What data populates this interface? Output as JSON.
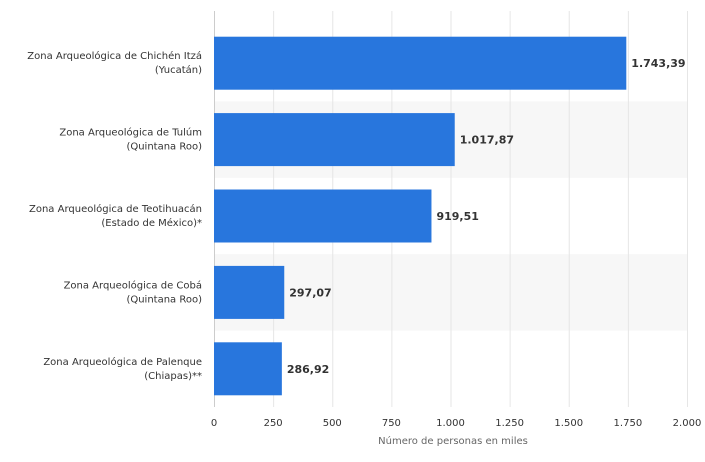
{
  "chart_data": {
    "type": "bar",
    "orientation": "horizontal",
    "categories": [
      [
        "Zona Arqueológica de Chichén Itzá",
        "(Yucatán)"
      ],
      [
        "Zona Arqueológica de Tulúm",
        "(Quintana Roo)"
      ],
      [
        "Zona Arqueológica de Teotihuacán",
        "(Estado de México)*"
      ],
      [
        "Zona Arqueológica de Cobá",
        "(Quintana Roo)"
      ],
      [
        "Zona Arqueológica de Palenque",
        "(Chiapas)**"
      ]
    ],
    "values": [
      1743.39,
      1017.87,
      919.51,
      297.07,
      286.92
    ],
    "value_labels": [
      "1.743,39",
      "1.017,87",
      "919,51",
      "297,07",
      "286,92"
    ],
    "xlabel": "Número de personas en miles",
    "xlim": [
      0,
      2000
    ],
    "ticks": [
      0,
      250,
      500,
      750,
      1000,
      1250,
      1500,
      1750,
      2000
    ],
    "tick_labels": [
      "0",
      "250",
      "500",
      "750",
      "1.000",
      "1.250",
      "1.500",
      "1.750",
      "2.000"
    ],
    "bar_color": "#2876dd",
    "band_color": "#f7f7f7",
    "grid_color": "#e6e6e6",
    "label_color": "#333333",
    "value_color": "#333333",
    "axis_label_color": "#666666"
  }
}
